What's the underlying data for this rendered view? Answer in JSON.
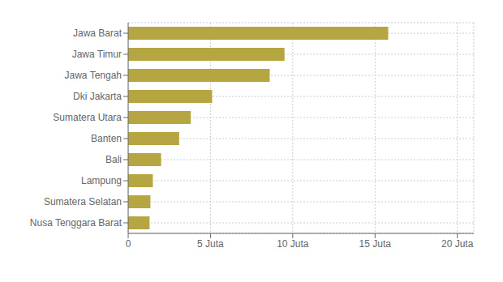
{
  "chart_data": {
    "type": "bar",
    "orientation": "horizontal",
    "categories": [
      "Nusa Tenggara Barat",
      "Sumatera Selatan",
      "Lampung",
      "Bali",
      "Banten",
      "Sumatera Utara",
      "Dki Jakarta",
      "Jawa Tengah",
      "Jawa Timur",
      "Jawa Barat"
    ],
    "values": [
      1.3,
      1.35,
      1.5,
      2.0,
      3.1,
      3.8,
      5.1,
      8.6,
      9.5,
      15.8
    ],
    "color": "#b5a642",
    "xlim": [
      0,
      21
    ],
    "xticks": [
      0,
      {
        "value": 5,
        "label": "5 Juta"
      },
      {
        "value": 10,
        "label": "10 Juta"
      },
      {
        "value": 15,
        "label": "15 Juta"
      },
      {
        "value": 20,
        "label": "20 Juta"
      }
    ],
    "grid": true
  }
}
